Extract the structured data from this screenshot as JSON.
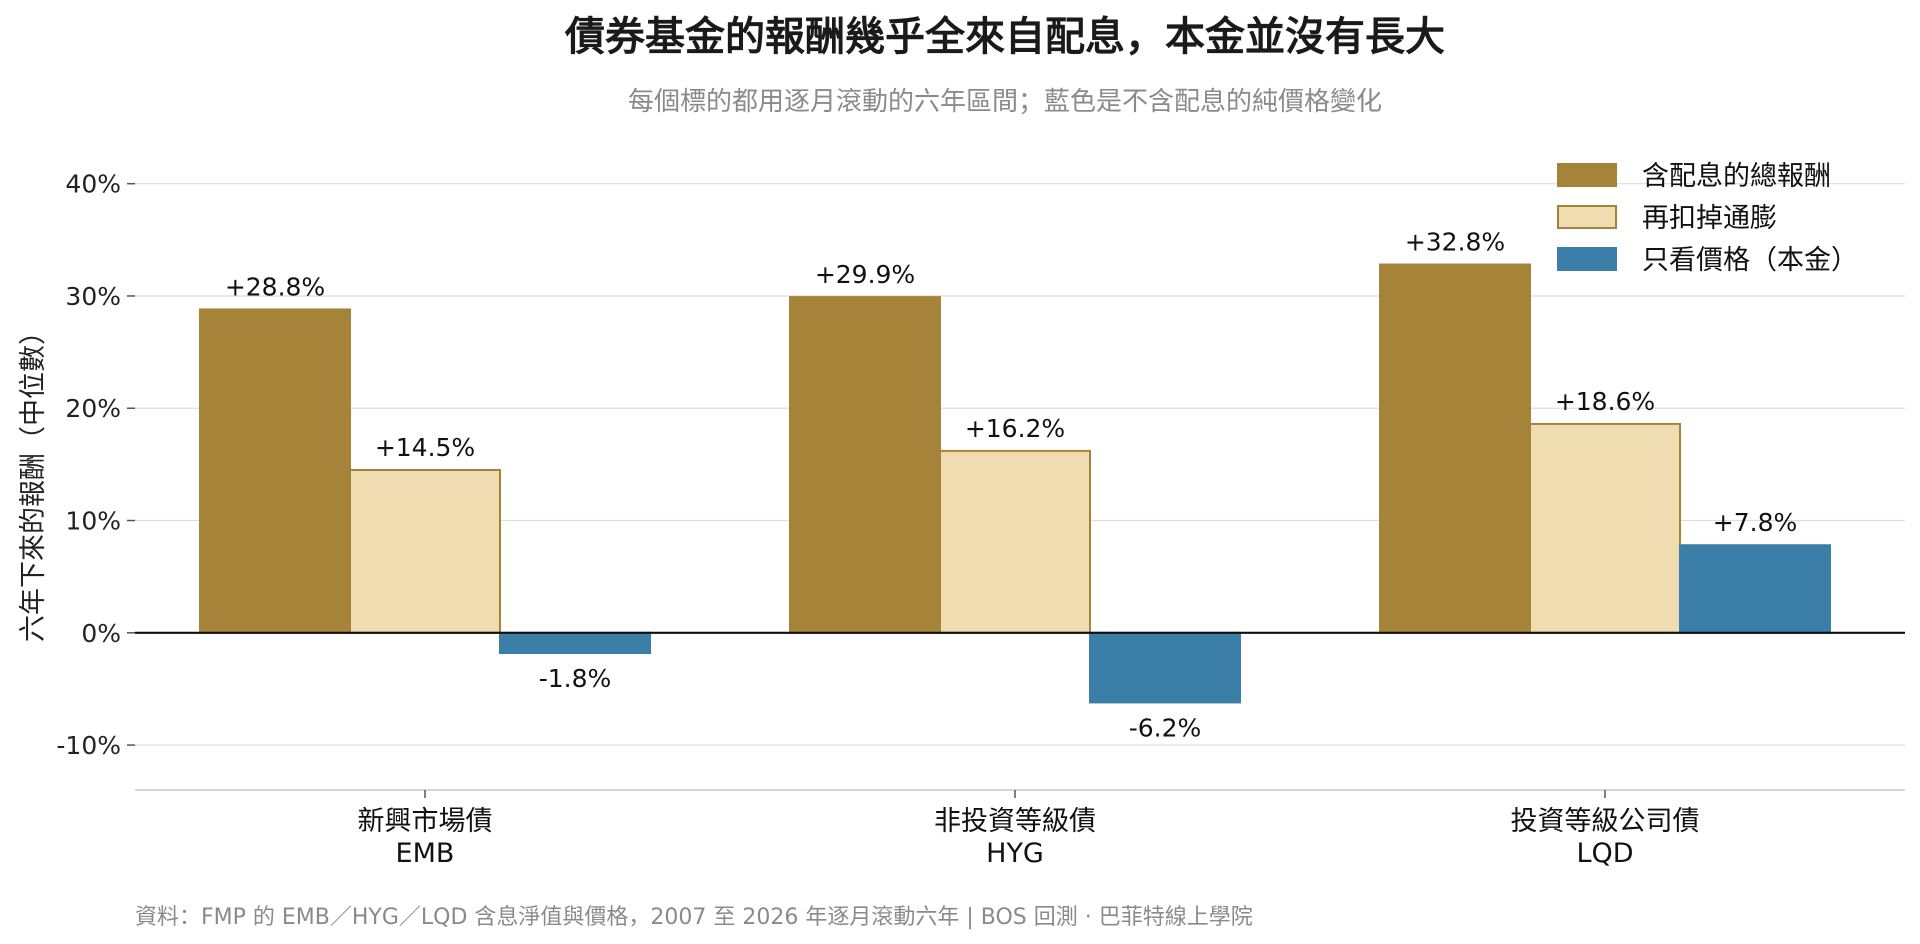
{
  "chart_data": {
    "type": "bar",
    "title": "債券基金的報酬幾乎全來自配息，本金並沒有長大",
    "subtitle": "每個標的都用逐月滾動的六年區間；藍色是不含配息的純價格變化",
    "ylabel": "六年下來的報酬（中位數）",
    "ylim": [
      -14,
      43
    ],
    "yticks": [
      -10,
      0,
      10,
      20,
      30,
      40
    ],
    "ytick_labels": [
      "-10%",
      "0%",
      "10%",
      "20%",
      "30%",
      "40%"
    ],
    "grid": true,
    "legend_position": "top-right",
    "categories": [
      {
        "name": "新興市場債",
        "ticker": "EMB"
      },
      {
        "name": "非投資等級債",
        "ticker": "HYG"
      },
      {
        "name": "投資等級公司債",
        "ticker": "LQD"
      }
    ],
    "series": [
      {
        "name": "含配息的總報酬",
        "values": [
          28.8,
          29.9,
          32.8
        ],
        "labels": [
          "+28.8%",
          "+29.9%",
          "+32.8%"
        ],
        "color": "#a5843a",
        "edge": "#a5843a"
      },
      {
        "name": "再扣掉通膨",
        "values": [
          14.5,
          16.2,
          18.6
        ],
        "labels": [
          "+14.5%",
          "+16.2%",
          "+18.6%"
        ],
        "color": "#efdcb0",
        "edge": "#a5843a"
      },
      {
        "name": "只看價格（本金）",
        "values": [
          -1.8,
          -6.2,
          7.8
        ],
        "labels": [
          "-1.8%",
          "-6.2%",
          "+7.8%"
        ],
        "color": "#3b7ea8",
        "edge": "#3b7ea8"
      }
    ]
  },
  "source": "資料：FMP 的 EMB／HYG／LQD 含息淨值與價格，2007 至 2026 年逐月滾動六年 | BOS 回測 · 巴菲特線上學院"
}
